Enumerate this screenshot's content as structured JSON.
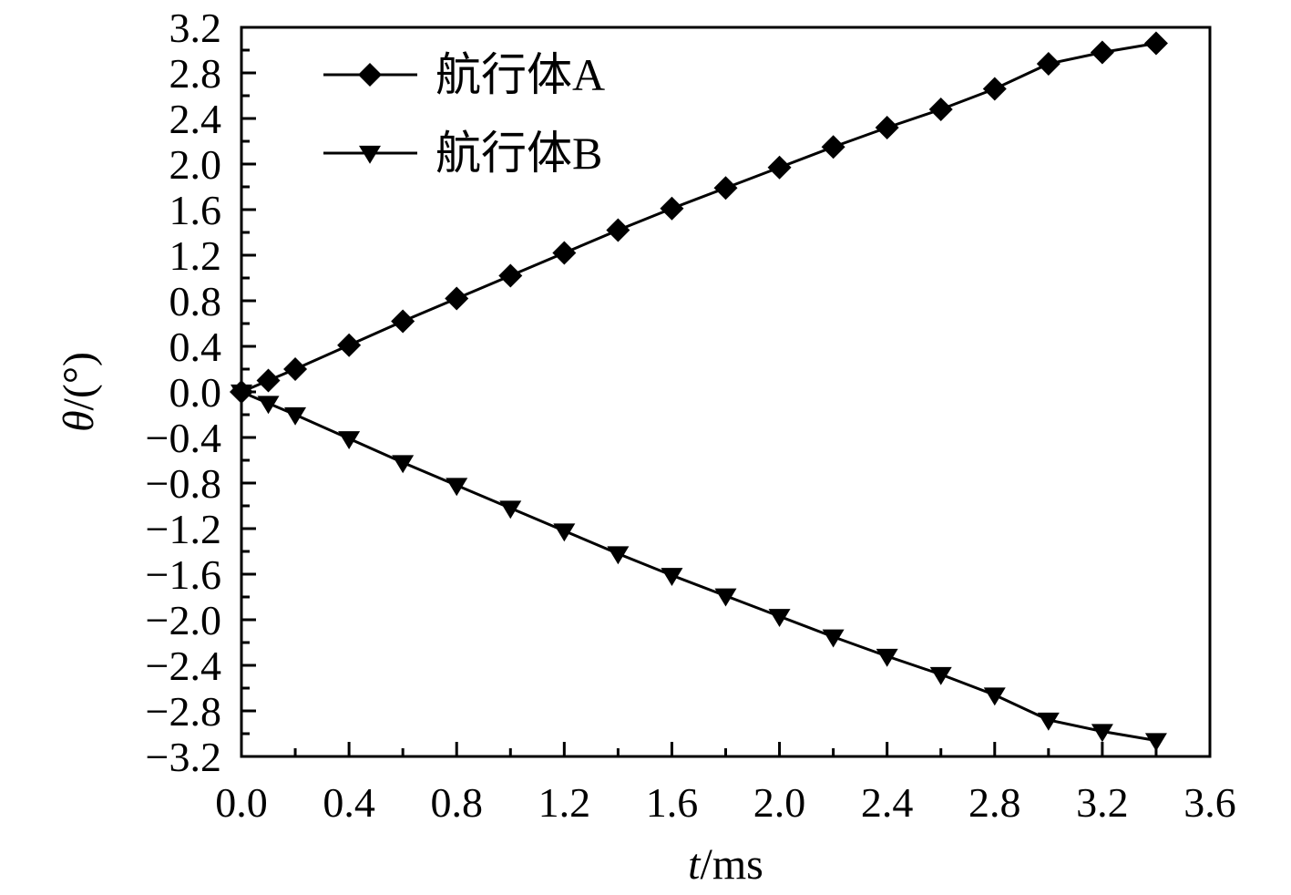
{
  "chart_data": {
    "type": "line",
    "xlabel_var": "t",
    "xlabel_unit": "/ms",
    "ylabel_var": "θ",
    "ylabel_unit": "/(°)",
    "xlim": [
      0.0,
      3.6
    ],
    "ylim": [
      -3.2,
      3.2
    ],
    "xticks": [
      "0.0",
      "0.4",
      "0.8",
      "1.2",
      "1.6",
      "2.0",
      "2.4",
      "2.8",
      "3.2",
      "3.6"
    ],
    "yticks": [
      "3.2",
      "2.8",
      "2.4",
      "2.0",
      "1.6",
      "1.2",
      "0.8",
      "0.4",
      "0.0",
      "−0.4",
      "−0.8",
      "−1.2",
      "−1.6",
      "−2.0",
      "−2.4",
      "−2.8",
      "−3.2"
    ],
    "grid": false,
    "legend_position": "top-left",
    "x": [
      0.0,
      0.1,
      0.2,
      0.4,
      0.6,
      0.8,
      1.0,
      1.2,
      1.4,
      1.6,
      1.8,
      2.0,
      2.2,
      2.4,
      2.6,
      2.8,
      3.0,
      3.2,
      3.4
    ],
    "series": [
      {
        "name": "航行体A",
        "marker": "diamond",
        "color": "#000000",
        "values": [
          0.0,
          0.1,
          0.2,
          0.41,
          0.62,
          0.82,
          1.02,
          1.22,
          1.42,
          1.61,
          1.79,
          1.97,
          2.15,
          2.32,
          2.48,
          2.66,
          2.88,
          2.98,
          3.06
        ]
      },
      {
        "name": "航行体B",
        "marker": "triangle-down",
        "color": "#000000",
        "values": [
          0.0,
          -0.1,
          -0.2,
          -0.41,
          -0.62,
          -0.82,
          -1.02,
          -1.22,
          -1.42,
          -1.61,
          -1.79,
          -1.97,
          -2.15,
          -2.32,
          -2.48,
          -2.66,
          -2.88,
          -2.98,
          -3.06
        ]
      }
    ]
  }
}
